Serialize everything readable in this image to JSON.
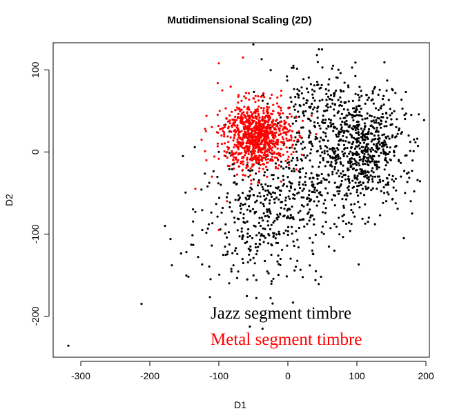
{
  "chart_data": {
    "type": "scatter",
    "title": "Mutidimensional Scaling (2D)",
    "xlabel": "D1",
    "ylabel": "D2",
    "xlim": [
      -340,
      205
    ],
    "ylim": [
      -250,
      133
    ],
    "xticks": [
      -300,
      -200,
      -100,
      0,
      100,
      200
    ],
    "yticks": [
      -200,
      -100,
      0,
      100
    ],
    "xtick_labels": [
      "-300",
      "-200",
      "-100",
      "0",
      "100",
      "200"
    ],
    "ytick_labels": [
      "-200",
      "-100",
      "0",
      "100"
    ],
    "grid": false,
    "legend_position": "bottom-right",
    "series": [
      {
        "name": "Jazz segment timbre",
        "color": "#000000",
        "clusters": [
          {
            "center": [
              110,
              5
            ],
            "spread": [
              30,
              35
            ],
            "count": 650
          },
          {
            "center": [
              -40,
              -80
            ],
            "spread": [
              45,
              40
            ],
            "count": 330
          },
          {
            "center": [
              30,
              -40
            ],
            "spread": [
              40,
              40
            ],
            "count": 260
          },
          {
            "center": [
              40,
              50
            ],
            "spread": [
              30,
              30
            ],
            "count": 160
          }
        ],
        "outliers": [
          [
            -318,
            -236
          ],
          [
            -212,
            -185
          ],
          [
            -178,
            -90
          ],
          [
            -170,
            -106
          ],
          [
            -168,
            -138
          ],
          [
            -152,
            -5
          ],
          [
            -147,
            -122
          ],
          [
            -144,
            -152
          ],
          [
            -140,
            -113
          ],
          [
            -134,
            -73
          ],
          [
            -130,
            -128
          ],
          [
            -112,
            -155
          ],
          [
            -50,
            131
          ],
          [
            -38,
            113
          ],
          [
            -25,
            -178
          ],
          [
            40,
            -156
          ],
          [
            45,
            125
          ],
          [
            8,
            105
          ],
          [
            168,
            -105
          ],
          [
            180,
            -75
          ],
          [
            183,
            -48
          ],
          [
            175,
            -25
          ],
          [
            178,
            -60
          ],
          [
            -124,
            -95
          ],
          [
            -100,
            0
          ],
          [
            -85,
            -160
          ],
          [
            175,
            20
          ]
        ]
      },
      {
        "name": "Metal segment timbre",
        "color": "#ff0000",
        "clusters": [
          {
            "center": [
              -45,
              20
            ],
            "spread": [
              24,
              20
            ],
            "count": 900
          }
        ],
        "outliers": [
          [
            -100,
            108
          ],
          [
            -65,
            115
          ],
          [
            -134,
            -45
          ],
          [
            -120,
            28
          ],
          [
            -125,
            15
          ],
          [
            -118,
            -10
          ],
          [
            -110,
            -30
          ],
          [
            -100,
            -95
          ],
          [
            -88,
            -60
          ],
          [
            -95,
            75
          ]
        ]
      }
    ]
  }
}
